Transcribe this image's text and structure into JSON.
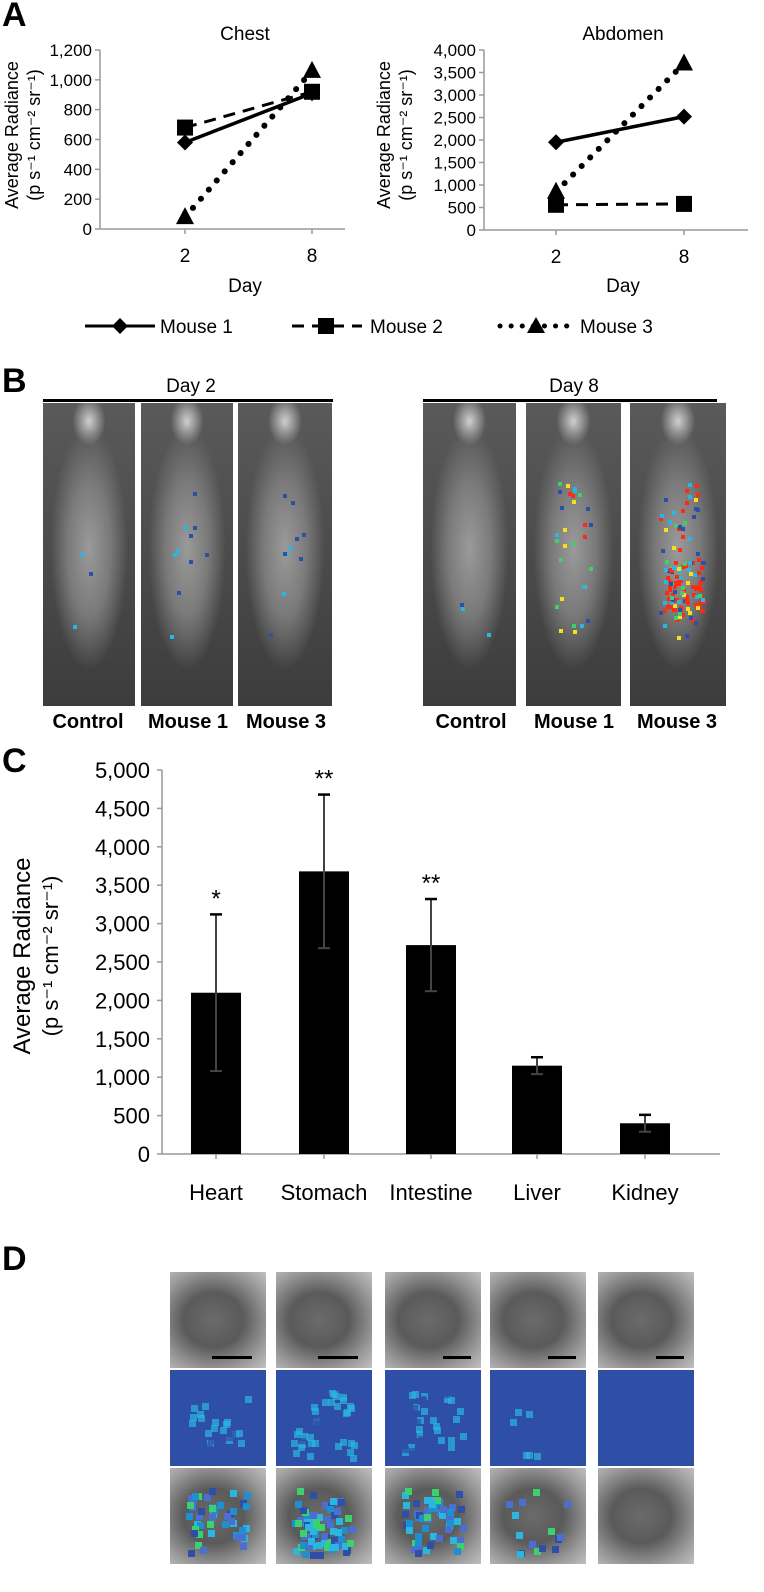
{
  "panels": {
    "a": "A",
    "b": "B",
    "c": "C",
    "d": "D"
  },
  "chart_data": [
    {
      "id": "chest",
      "type": "line",
      "title": "Chest",
      "xlabel": "Day",
      "ylabel_line1": "Average Radiance",
      "ylabel_line2": "(p s⁻¹ cm⁻² sr⁻¹)",
      "x": [
        2,
        8
      ],
      "ylim": [
        0,
        1200
      ],
      "yticks": [
        "0",
        "200",
        "400",
        "600",
        "800",
        "1,000",
        "1,200"
      ],
      "series": [
        {
          "name": "Mouse 1",
          "values": [
            580,
            910
          ],
          "style": "solid",
          "marker": "diamond"
        },
        {
          "name": "Mouse 2",
          "values": [
            680,
            920
          ],
          "style": "dashed",
          "marker": "square"
        },
        {
          "name": "Mouse 3",
          "values": [
            80,
            1060
          ],
          "style": "dotted",
          "marker": "triangle"
        }
      ]
    },
    {
      "id": "abdomen",
      "type": "line",
      "title": "Abdomen",
      "xlabel": "Day",
      "ylabel_line1": "Average Radiance",
      "ylabel_line2": "(p s⁻¹ cm⁻² sr⁻¹)",
      "x": [
        2,
        8
      ],
      "ylim": [
        0,
        4000
      ],
      "yticks": [
        "0",
        "500",
        "1,000",
        "1,500",
        "2,000",
        "2,500",
        "3,000",
        "3,500",
        "4,000"
      ],
      "series": [
        {
          "name": "Mouse 1",
          "values": [
            1950,
            2520
          ],
          "style": "solid",
          "marker": "diamond"
        },
        {
          "name": "Mouse 2",
          "values": [
            560,
            580
          ],
          "style": "dashed",
          "marker": "square"
        },
        {
          "name": "Mouse 3",
          "values": [
            850,
            3700
          ],
          "style": "dotted",
          "marker": "triangle"
        }
      ]
    },
    {
      "id": "organs",
      "type": "bar",
      "ylabel_line1": "Average Radiance",
      "ylabel_line2": "(p s⁻¹ cm⁻² sr⁻¹)",
      "categories": [
        "Heart",
        "Stomach",
        "Intestine",
        "Liver",
        "Kidney"
      ],
      "values": [
        2100,
        3680,
        2720,
        1150,
        400
      ],
      "errors": [
        1020,
        1000,
        600,
        110,
        110
      ],
      "significance": [
        "*",
        "**",
        "**",
        "",
        ""
      ],
      "ylim": [
        0,
        5000
      ],
      "yticks": [
        "0",
        "500",
        "1,000",
        "1,500",
        "2,000",
        "2,500",
        "3,000",
        "3,500",
        "4,000",
        "4,500",
        "5,000"
      ]
    }
  ],
  "legend": [
    "Mouse 1",
    "Mouse 2",
    "Mouse 3"
  ],
  "panel_b": {
    "day2_label": "Day 2",
    "day8_label": "Day 8",
    "day2_captions": [
      "Control",
      "Mouse 1",
      "Mouse 3"
    ],
    "day8_captions": [
      "Control",
      "Mouse 1",
      "Mouse 3"
    ]
  },
  "colors": {
    "bar": "#000000",
    "imaging_blue": "#2f4ea8",
    "signal_red": "#ff2a10"
  }
}
